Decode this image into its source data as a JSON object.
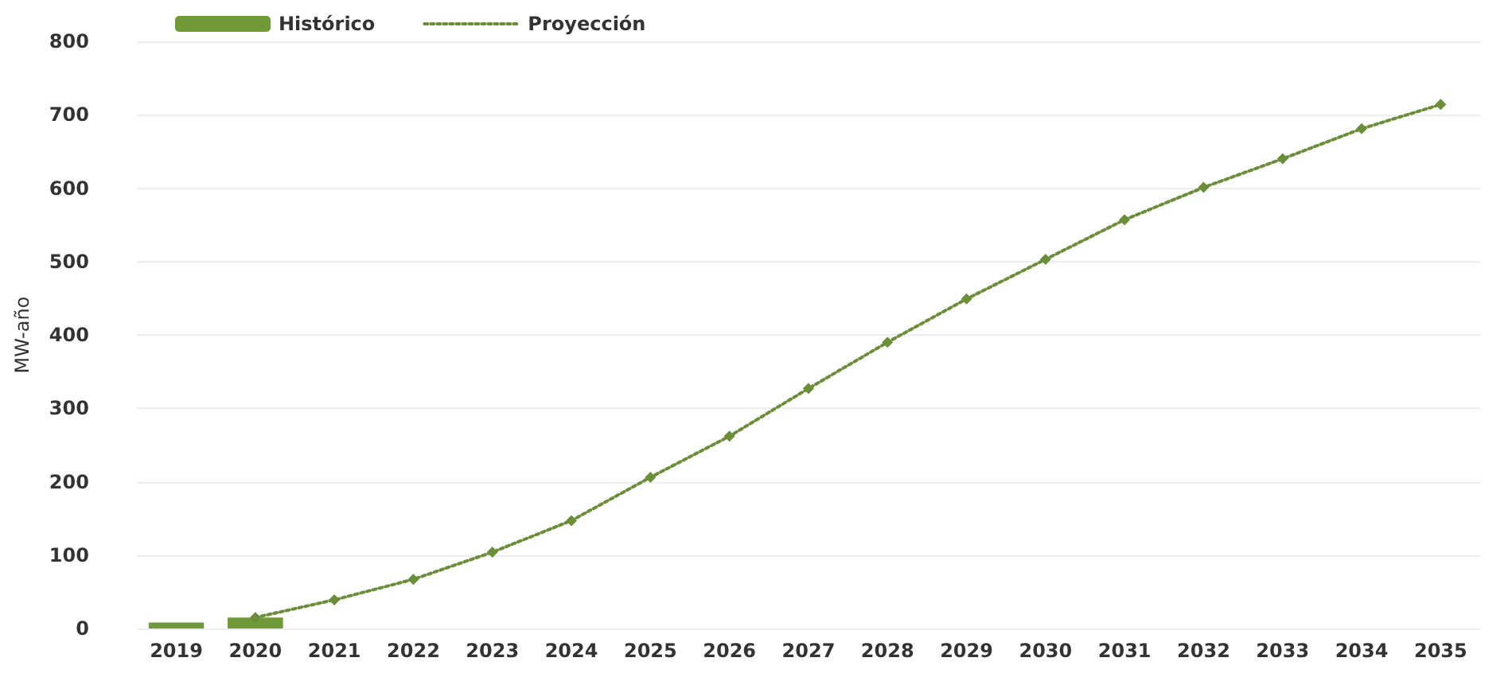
{
  "chart_data": {
    "type": "bar",
    "ylabel": "MW-año",
    "categories": [
      "2019",
      "2020",
      "2021",
      "2022",
      "2023",
      "2024",
      "2025",
      "2026",
      "2027",
      "2028",
      "2029",
      "2030",
      "2031",
      "2032",
      "2033",
      "2034",
      "2035"
    ],
    "series": [
      {
        "name": "Histórico",
        "color": "#6f9a37",
        "values": [
          8,
          15,
          null,
          null,
          null,
          null,
          null,
          null,
          null,
          null,
          null,
          null,
          null,
          null,
          null,
          null,
          null
        ]
      },
      {
        "name": "Proyección",
        "type": "line",
        "color": "#6b8e3a",
        "marker": "diamond",
        "line_style": "dotted",
        "values": [
          null,
          15,
          39,
          67,
          104,
          147,
          206,
          262,
          327,
          390,
          449,
          503,
          557,
          601,
          640,
          681,
          714
        ]
      }
    ],
    "ylim": [
      0,
      800
    ],
    "yticks": [
      0,
      100,
      200,
      300,
      400,
      500,
      600,
      700,
      800
    ],
    "grid": "y",
    "legend": "top left"
  }
}
